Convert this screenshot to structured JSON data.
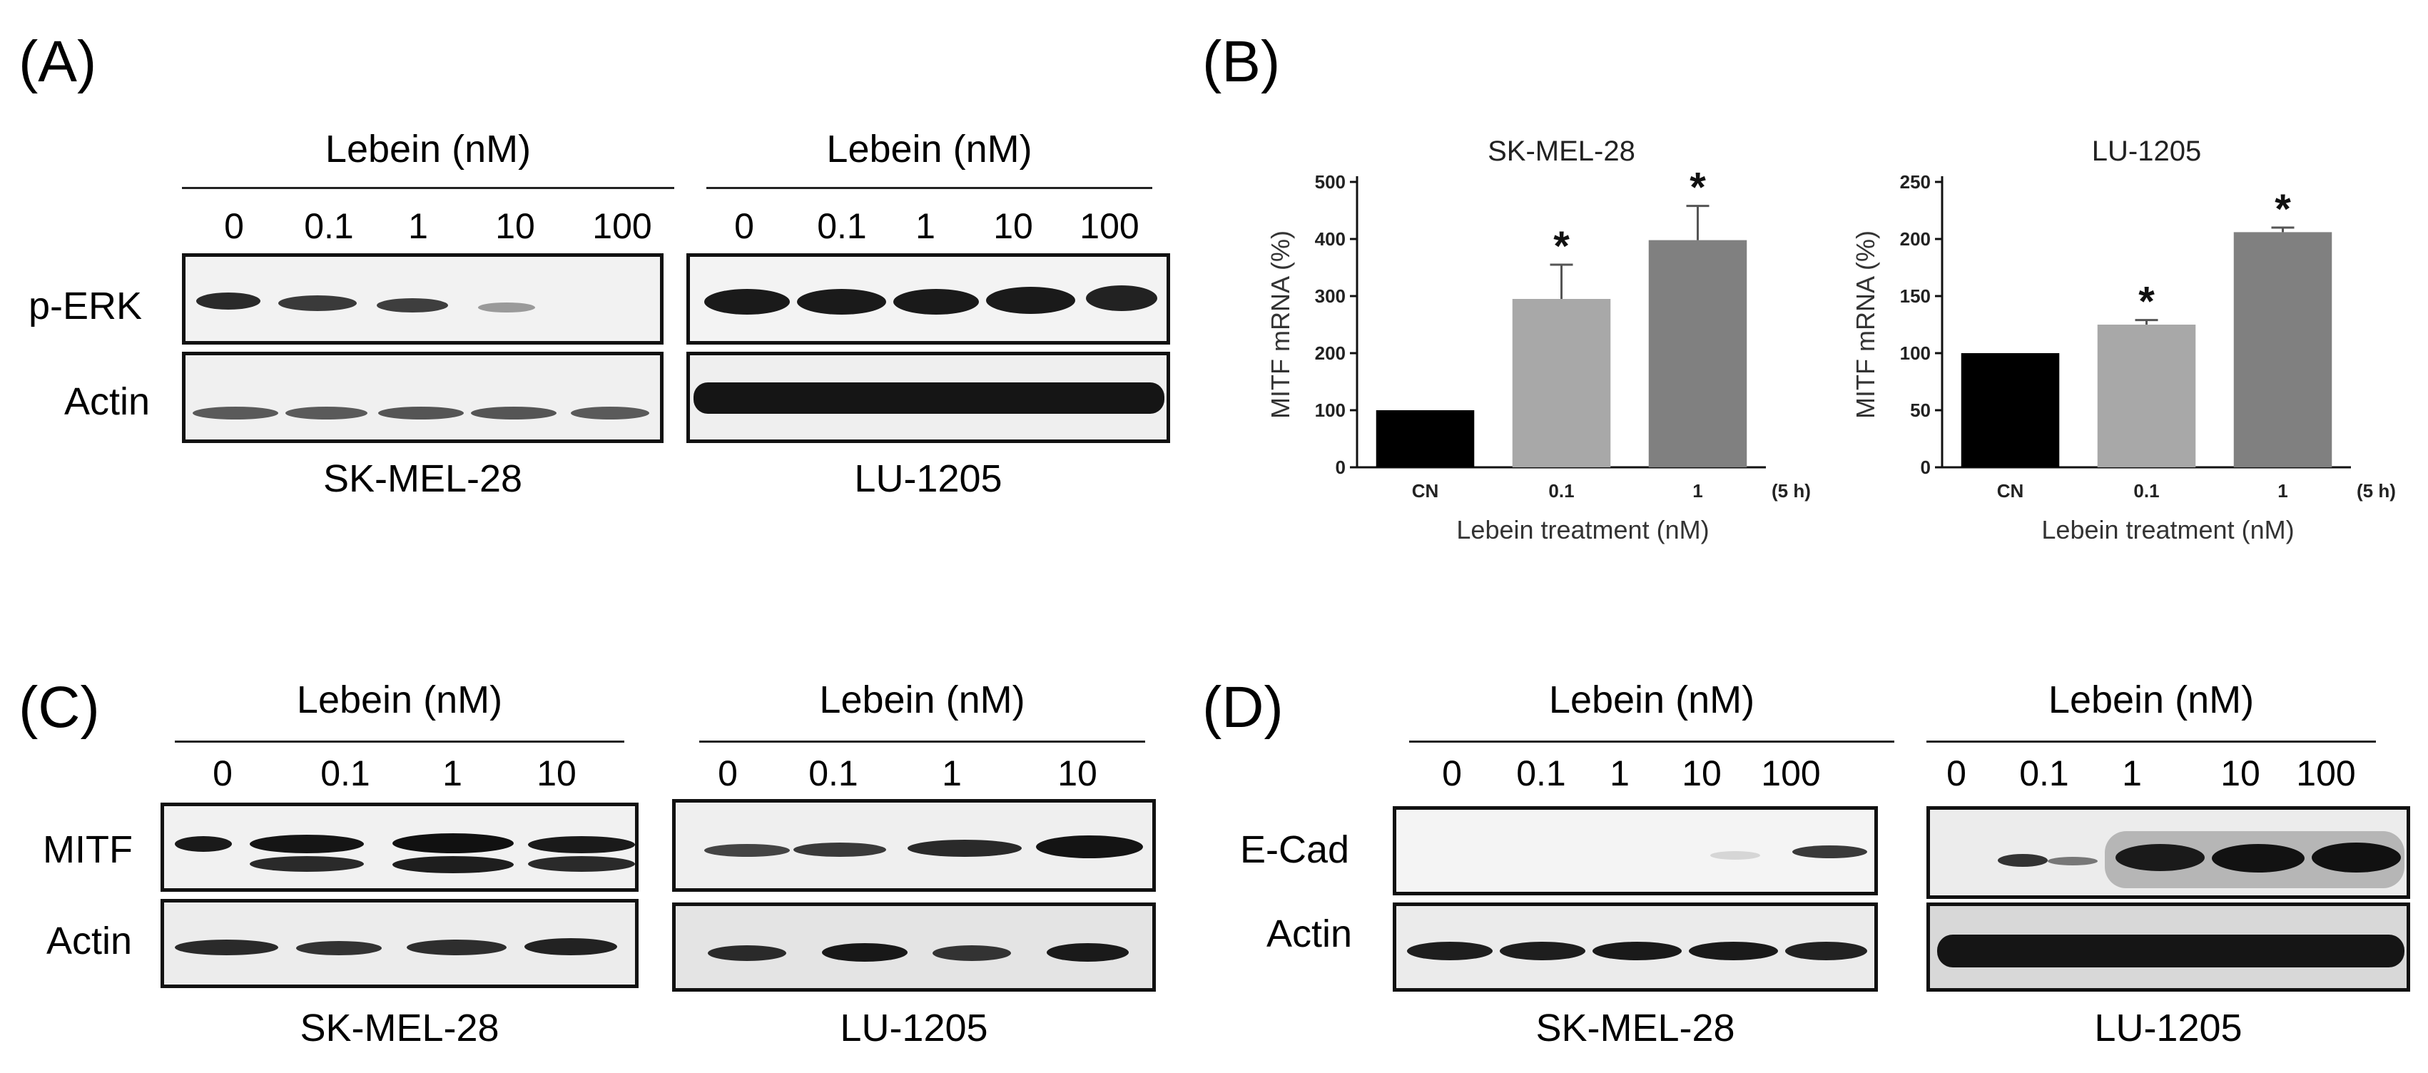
{
  "panels": {
    "A": {
      "letter": "(A)",
      "left": {
        "header": "Lebein (nM)",
        "concentrations": [
          "0",
          "0.1",
          "1",
          "10",
          "100"
        ],
        "cell_line": "SK-MEL-28",
        "row_labels": [
          "p-ERK",
          "Actin"
        ]
      },
      "right": {
        "header": "Lebein (nM)",
        "concentrations": [
          "0",
          "0.1",
          "1",
          "10",
          "100"
        ],
        "cell_line": "LU-1205"
      }
    },
    "B": {
      "letter": "(B)",
      "time_label": "(5 h)"
    },
    "C": {
      "letter": "(C)",
      "left": {
        "header": "Lebein (nM)",
        "concentrations": [
          "0",
          "0.1",
          "1",
          "10"
        ],
        "cell_line": "SK-MEL-28",
        "row_labels": [
          "MITF",
          "Actin"
        ]
      },
      "right": {
        "header": "Lebein (nM)",
        "concentrations": [
          "0",
          "0.1",
          "1",
          "10"
        ],
        "cell_line": "LU-1205"
      }
    },
    "D": {
      "letter": "(D)",
      "left": {
        "header": "Lebein (nM)",
        "concentrations": [
          "0",
          "0.1",
          "1",
          "10",
          "100"
        ],
        "cell_line": "SK-MEL-28",
        "row_labels": [
          "E-Cad",
          "Actin"
        ]
      },
      "right": {
        "header": "Lebein (nM)",
        "concentrations": [
          "0",
          "0.1",
          "1",
          "10",
          "100"
        ],
        "cell_line": "LU-1205"
      }
    }
  },
  "chart_data": [
    {
      "type": "bar",
      "title": "SK-MEL-28",
      "categories": [
        "CN",
        "0.1",
        "1"
      ],
      "values": [
        100,
        295,
        398
      ],
      "errors": [
        0,
        60,
        60
      ],
      "significant": [
        false,
        true,
        true
      ],
      "marker": "*",
      "xlabel": "Lebein treatment (nM)",
      "ylabel": "MITF mRNA (%)",
      "ylim": [
        0,
        500
      ],
      "yticks": [
        "0",
        "100",
        "200",
        "300",
        "400",
        "500"
      ],
      "bar_colors": [
        "#000000",
        "#a8a8a8",
        "#808080"
      ]
    },
    {
      "type": "bar",
      "title": "LU-1205",
      "categories": [
        "CN",
        "0.1",
        "1"
      ],
      "values": [
        100,
        125,
        206
      ],
      "errors": [
        0,
        4,
        4
      ],
      "significant": [
        false,
        true,
        true
      ],
      "marker": "*",
      "xlabel": "Lebein treatment (nM)",
      "ylabel": "MITF mRNA (%)",
      "ylim": [
        0,
        250
      ],
      "yticks": [
        "0",
        "50",
        "100",
        "150",
        "200",
        "250"
      ],
      "bar_colors": [
        "#000000",
        "#a8a8a8",
        "#808080"
      ]
    }
  ]
}
